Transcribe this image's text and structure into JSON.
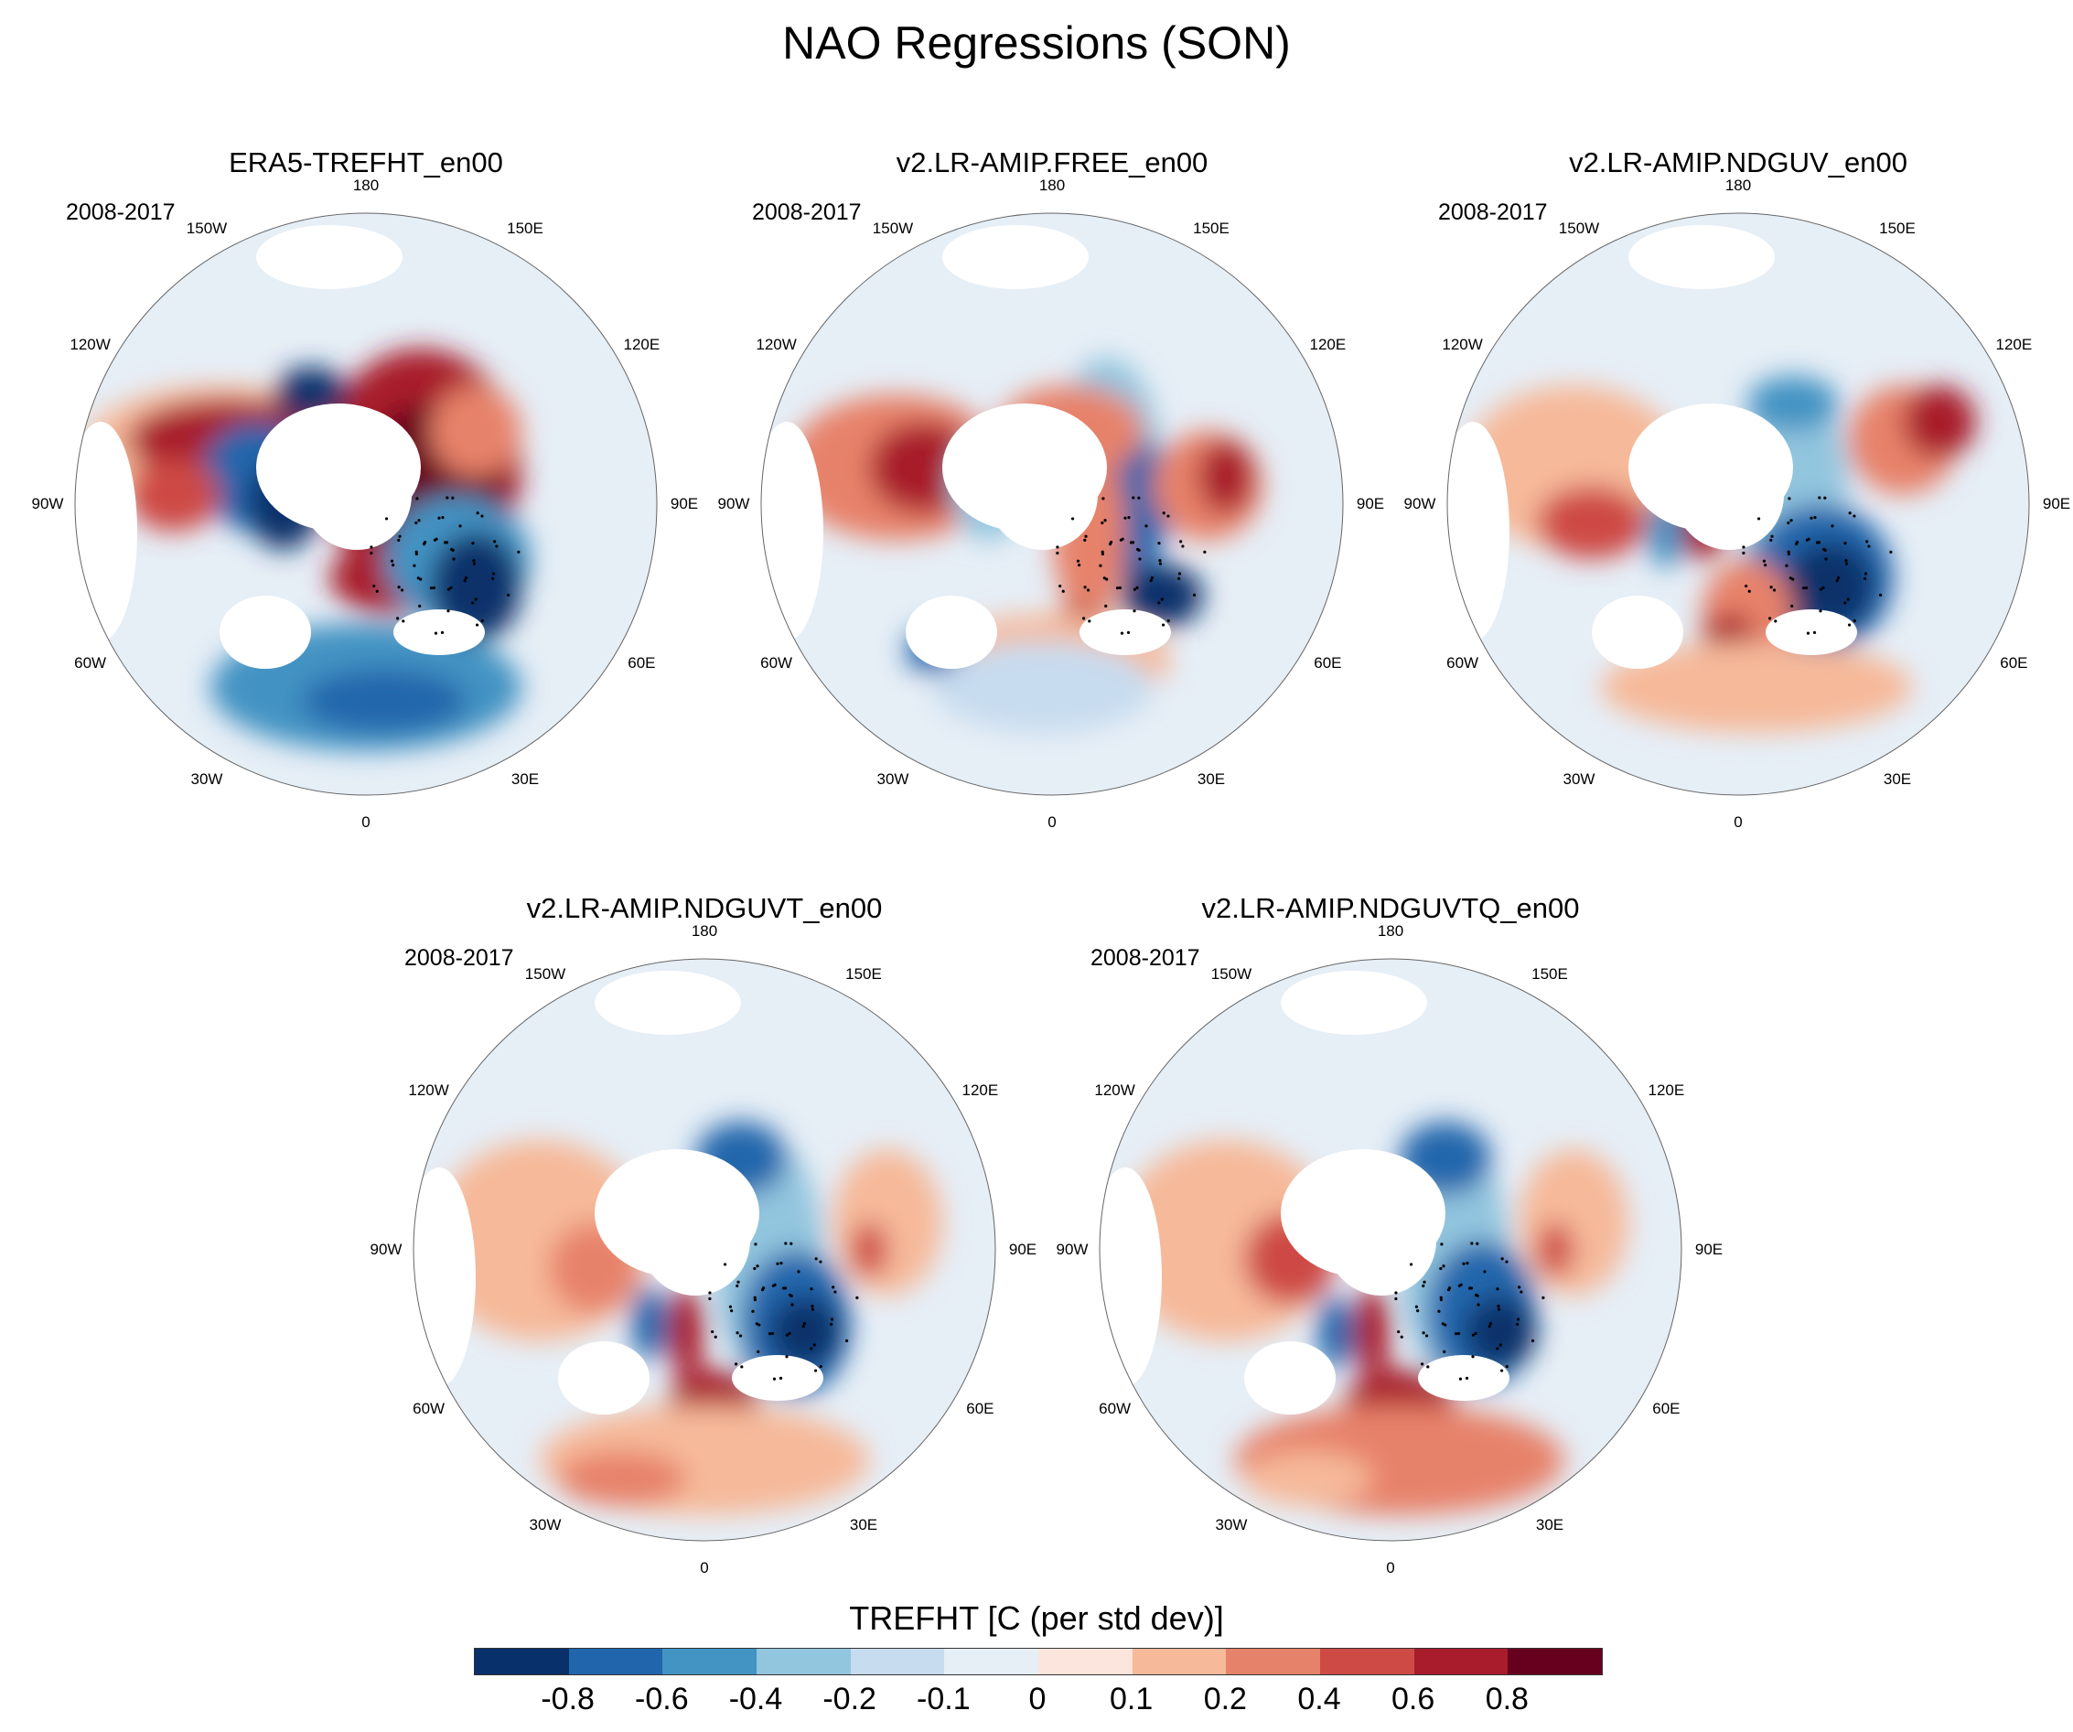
{
  "figure": {
    "title": "NAO Regressions (SON)"
  },
  "panels": [
    {
      "title": "ERA5-TREFHT_en00",
      "period": "2008-2017",
      "pattern": "era5"
    },
    {
      "title": "v2.LR-AMIP.FREE_en00",
      "period": "2008-2017",
      "pattern": "free"
    },
    {
      "title": "v2.LR-AMIP.NDGUV_en00",
      "period": "2008-2017",
      "pattern": "nduv"
    },
    {
      "title": "v2.LR-AMIP.NDGUVT_en00",
      "period": "2008-2017",
      "pattern": "nduvt"
    },
    {
      "title": "v2.LR-AMIP.NDGUVTQ_en00",
      "period": "2008-2017",
      "pattern": "nduvtq"
    }
  ],
  "lon_labels": [
    "180",
    "150E",
    "120E",
    "90E",
    "60E",
    "30E",
    "0",
    "30W",
    "60W",
    "90W",
    "120W",
    "150W"
  ],
  "colorbar": {
    "title": "TREFHT [C (per std dev)]",
    "labels": [
      "-0.8",
      "-0.6",
      "-0.4",
      "-0.2",
      "-0.1",
      "0",
      "0.1",
      "0.2",
      "0.4",
      "0.6",
      "0.8"
    ],
    "colors": [
      "#08306b",
      "#2166ac",
      "#4393c3",
      "#92c5de",
      "#c7dcef",
      "#e6eef6",
      "#fbe5dd",
      "#f6b99a",
      "#e7826a",
      "#ce4a45",
      "#a81c2c",
      "#67001f"
    ]
  }
}
